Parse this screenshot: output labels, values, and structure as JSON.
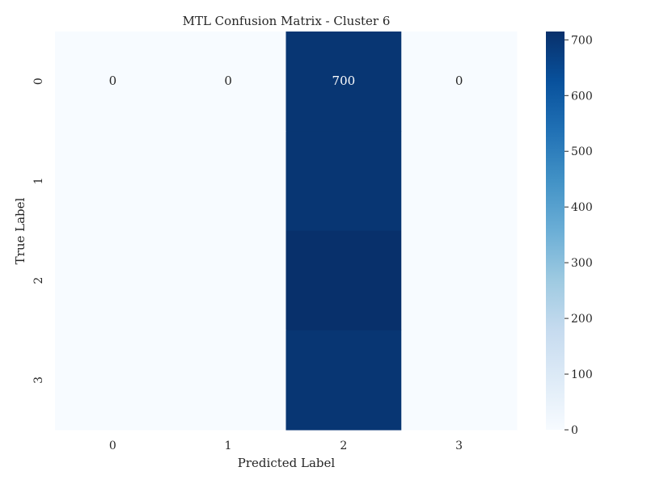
{
  "chart_data": {
    "type": "heatmap",
    "title": "MTL Confusion Matrix - Cluster 6",
    "xlabel": "Predicted Label",
    "ylabel": "True Label",
    "x_categories": [
      "0",
      "1",
      "2",
      "3"
    ],
    "y_categories": [
      "0",
      "1",
      "2",
      "3"
    ],
    "values": [
      [
        0,
        0,
        700,
        0
      ],
      [
        0,
        0,
        700,
        0
      ],
      [
        0,
        0,
        715,
        0
      ],
      [
        0,
        0,
        700,
        0
      ]
    ],
    "annotations": [
      [
        "0",
        "0",
        "700",
        "0"
      ],
      [
        "",
        "",
        "",
        ""
      ],
      [
        "",
        "",
        "",
        ""
      ],
      [
        "",
        "",
        "",
        ""
      ]
    ],
    "colorbar": {
      "min": 0,
      "max": 715,
      "ticks": [
        0,
        100,
        200,
        300,
        400,
        500,
        600,
        700
      ],
      "colormap": "Blues"
    },
    "colors": {
      "low": "#f7fbff",
      "high": "#08306b",
      "text_dark": "#262626",
      "text_light": "#ffffff"
    }
  }
}
